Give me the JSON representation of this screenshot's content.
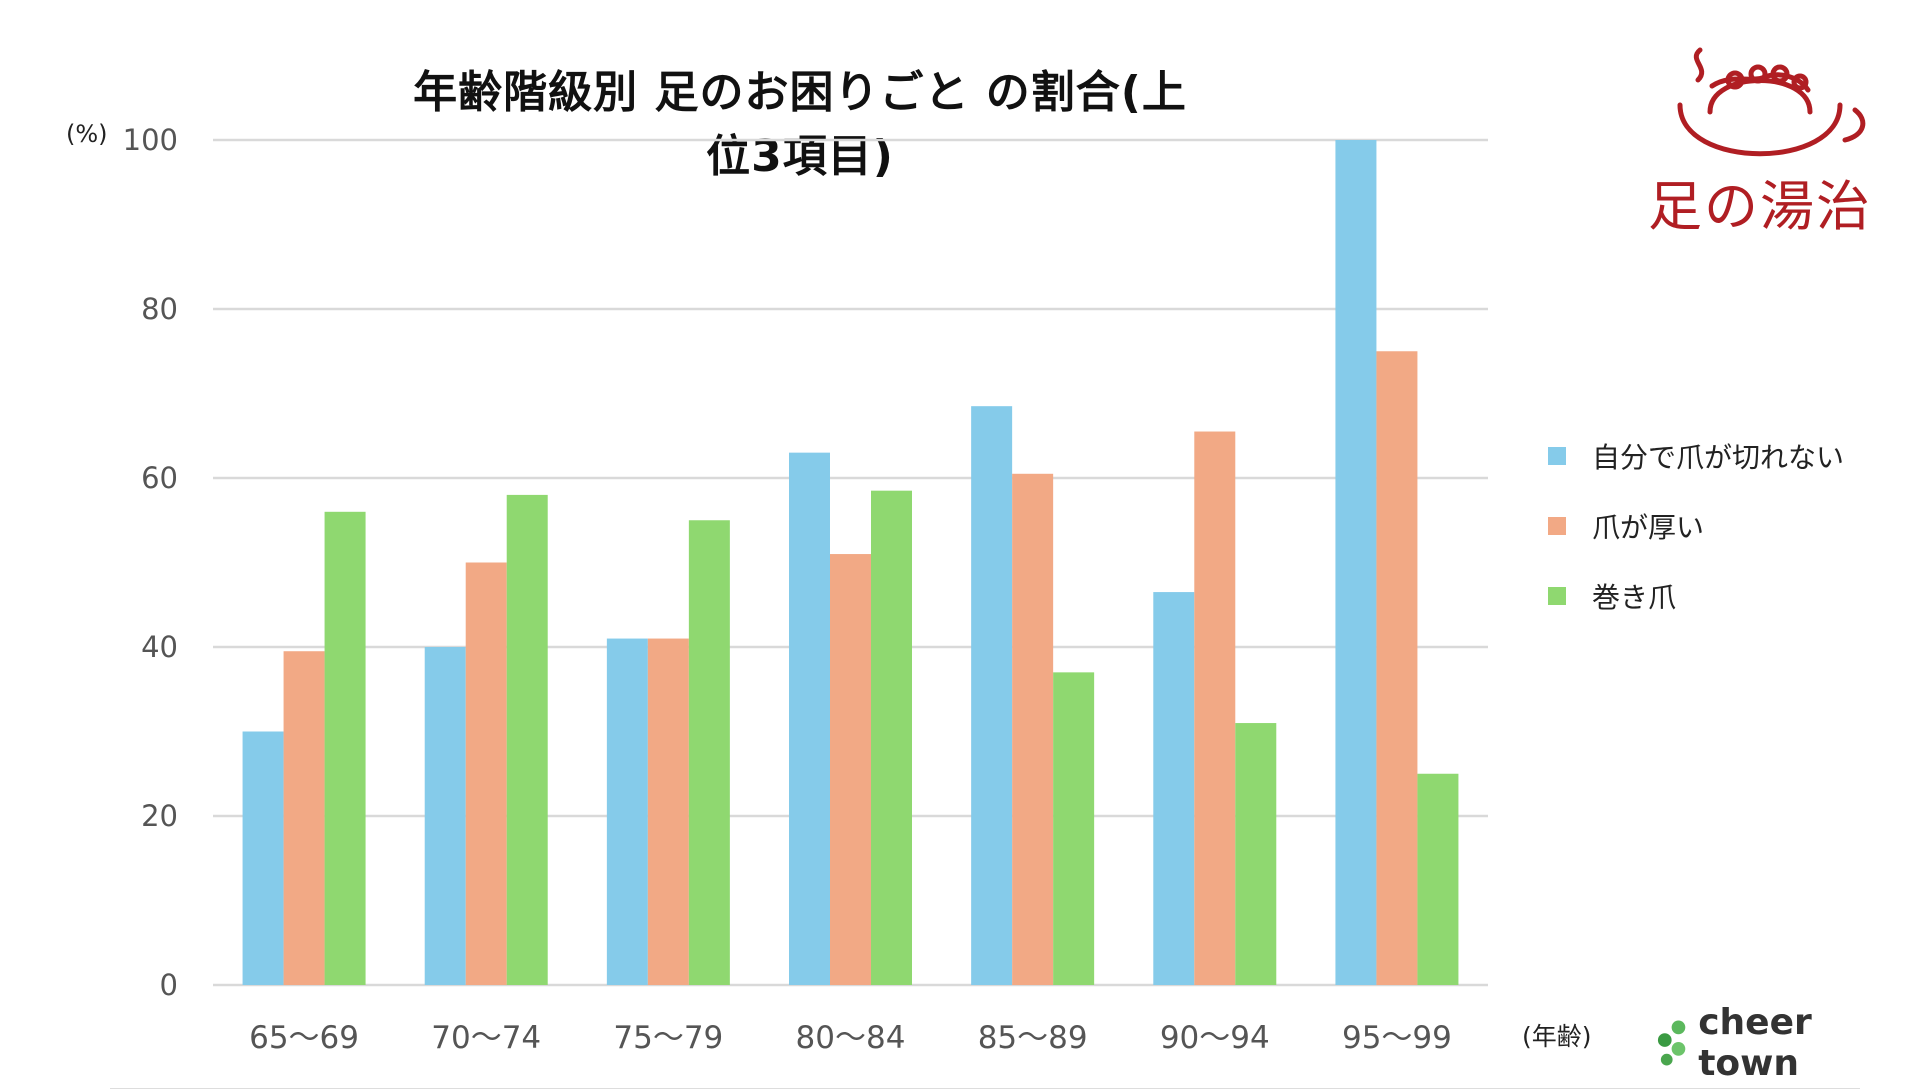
{
  "title": "年齢階級別  足のお困りごと の割合(上位3項目)",
  "y_unit": "(%)",
  "x_unit": "(年齢)",
  "logos": {
    "ashi_no_yuji": "足の湯治",
    "cheer_town": "cheer town"
  },
  "chart_data": {
    "type": "bar",
    "title": "年齢階級別  足のお困りごと の割合(上位3項目)",
    "xlabel": "(年齢)",
    "ylabel": "(%)",
    "ylim": [
      0,
      100
    ],
    "yticks": [
      0,
      20,
      40,
      60,
      80,
      100
    ],
    "grid": true,
    "legend_position": "right",
    "categories": [
      "65〜69",
      "70〜74",
      "75〜79",
      "80〜84",
      "85〜89",
      "90〜94",
      "95〜99"
    ],
    "series": [
      {
        "name": "自分で爪が切れない",
        "color": "#85cbea",
        "values": [
          30,
          40,
          41,
          63,
          68.5,
          46.5,
          100
        ]
      },
      {
        "name": "爪が厚い",
        "color": "#f2a985",
        "values": [
          39.5,
          50,
          41,
          51,
          60.5,
          65.5,
          75
        ]
      },
      {
        "name": "巻き爪",
        "color": "#8fd870",
        "values": [
          56,
          58,
          55,
          58.5,
          37,
          31,
          25
        ]
      }
    ]
  }
}
